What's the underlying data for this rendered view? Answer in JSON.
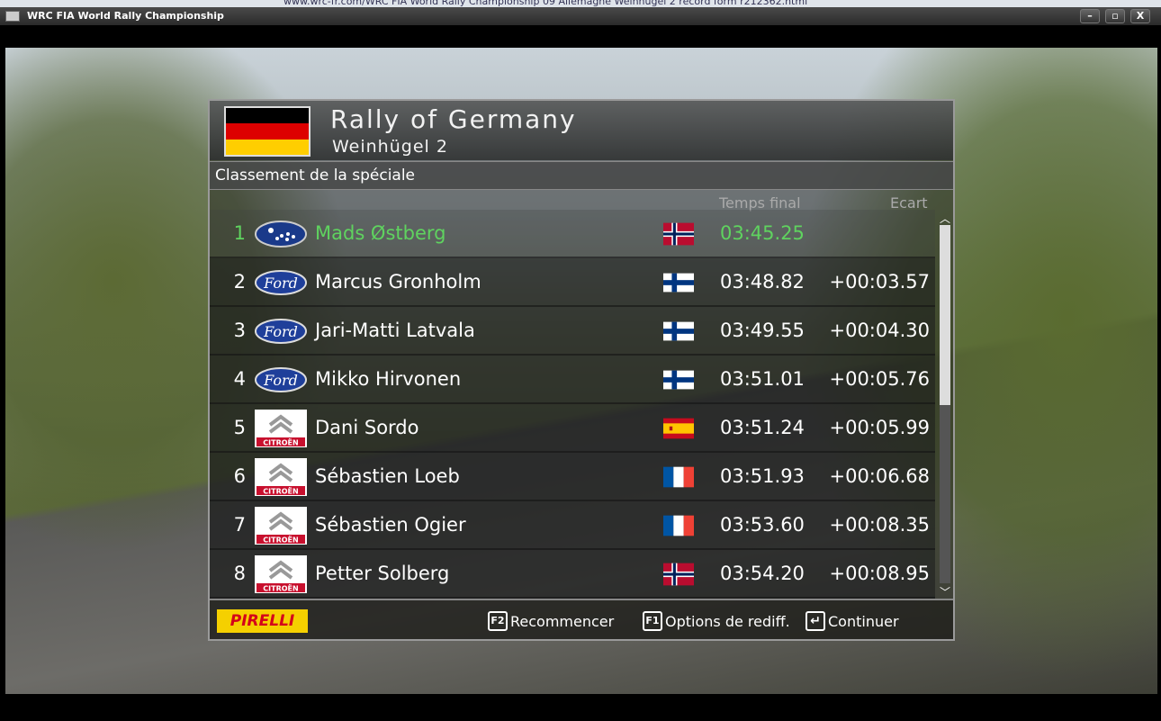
{
  "browser": {
    "url": "www.wrc-fr.com/WRC FIA World Rally Championship 09 Allemagne Weinhugel 2 record form r212362.html"
  },
  "window": {
    "title": "WRC FIA World Rally Championship",
    "minimize": "–",
    "maximize": "▫",
    "close": "X"
  },
  "header": {
    "title": "Rally of Germany",
    "subtitle": "Weinhügel 2",
    "flag_colors": [
      "#000000",
      "#dd0000",
      "#ffce00"
    ]
  },
  "section": "Classement de la spéciale",
  "columns": {
    "time": "Temps final",
    "gap": "Ecart"
  },
  "colors": {
    "leader": "#5fd35f"
  },
  "results": [
    {
      "pos": "1",
      "brand": "subaru",
      "name": "Mads Østberg",
      "country": "norway",
      "time": "03:45.25",
      "gap": ""
    },
    {
      "pos": "2",
      "brand": "ford",
      "name": "Marcus Gronholm",
      "country": "finland",
      "time": "03:48.82",
      "gap": "+00:03.57"
    },
    {
      "pos": "3",
      "brand": "ford",
      "name": "Jari-Matti Latvala",
      "country": "finland",
      "time": "03:49.55",
      "gap": "+00:04.30"
    },
    {
      "pos": "4",
      "brand": "ford",
      "name": "Mikko Hirvonen",
      "country": "finland",
      "time": "03:51.01",
      "gap": "+00:05.76"
    },
    {
      "pos": "5",
      "brand": "citroen",
      "name": "Dani Sordo",
      "country": "spain",
      "time": "03:51.24",
      "gap": "+00:05.99"
    },
    {
      "pos": "6",
      "brand": "citroen",
      "name": "Sébastien Loeb",
      "country": "france",
      "time": "03:51.93",
      "gap": "+00:06.68"
    },
    {
      "pos": "7",
      "brand": "citroen",
      "name": "Sébastien Ogier",
      "country": "france",
      "time": "03:53.60",
      "gap": "+00:08.35"
    },
    {
      "pos": "8",
      "brand": "citroen",
      "name": "Petter Solberg",
      "country": "norway",
      "time": "03:54.20",
      "gap": "+00:08.95"
    }
  ],
  "logo_text": {
    "ford": "Ford",
    "citroen": "CITROËN"
  },
  "footer": {
    "sponsor": "PIRELLI",
    "restart_key": "F2",
    "restart": "Recommencer",
    "replay_key": "F1",
    "replay": "Options de rediff.",
    "continue_key": "↵",
    "continue": "Continuer"
  }
}
